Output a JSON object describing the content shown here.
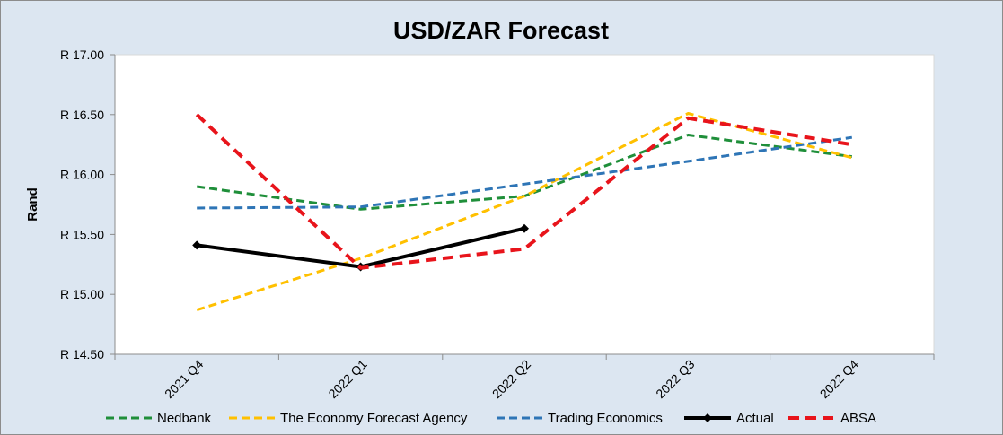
{
  "chart_data": {
    "type": "line",
    "title": "USD/ZAR Forecast",
    "xlabel": "",
    "ylabel": "Rand",
    "categories": [
      "2021 Q4",
      "2022 Q1",
      "2022 Q2",
      "2022 Q3",
      "2022 Q4"
    ],
    "ylim": [
      14.5,
      17.0
    ],
    "yticks": [
      14.5,
      15.0,
      15.5,
      16.0,
      16.5,
      17.0
    ],
    "ytick_labels": [
      "R 14.50",
      "R 15.00",
      "R 15.50",
      "R 16.00",
      "R 16.50",
      "R 17.00"
    ],
    "grid": false,
    "legend_position": "bottom",
    "series": [
      {
        "name": "Nedbank",
        "color": "#1f8f3a",
        "style": "dashed",
        "values": [
          15.9,
          15.71,
          15.82,
          16.33,
          16.15
        ]
      },
      {
        "name": "The Economy Forecast Agency",
        "color": "#ffc000",
        "style": "dashed",
        "values": [
          14.87,
          15.3,
          15.82,
          16.51,
          16.14
        ]
      },
      {
        "name": "Trading Economics",
        "color": "#2e75b6",
        "style": "dashed",
        "values": [
          15.72,
          15.73,
          15.92,
          16.11,
          16.31
        ]
      },
      {
        "name": "Actual",
        "color": "#000000",
        "style": "solid-markers",
        "values": [
          15.41,
          15.23,
          15.55,
          null,
          null
        ]
      },
      {
        "name": "ABSA",
        "color": "#e8141b",
        "style": "dashed-thick",
        "values": [
          16.5,
          15.22,
          15.38,
          16.47,
          16.25
        ]
      }
    ]
  }
}
